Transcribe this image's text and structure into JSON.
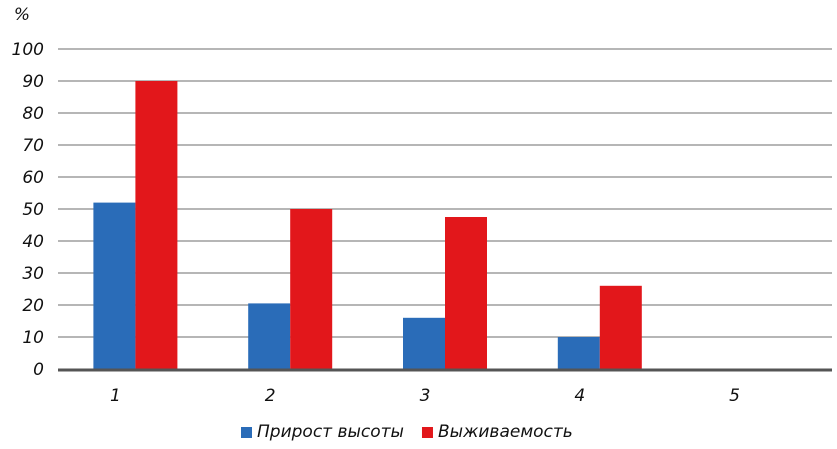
{
  "chart_data": {
    "type": "bar",
    "ylabel": "%",
    "xlabel": "",
    "title": "",
    "ylim": [
      0,
      100
    ],
    "yticks": [
      0,
      10,
      20,
      30,
      40,
      50,
      60,
      70,
      80,
      90,
      100
    ],
    "categories": [
      "1",
      "2",
      "3",
      "4",
      "5"
    ],
    "series": [
      {
        "name": "Прирост высоты",
        "color": "#2a6cb8",
        "values": [
          52,
          20.5,
          16,
          10,
          0
        ]
      },
      {
        "name": "Выживаемость",
        "color": "#e2171b",
        "values": [
          90,
          50,
          47.5,
          26,
          0
        ]
      }
    ],
    "grid": true,
    "legend_position": "bottom"
  }
}
